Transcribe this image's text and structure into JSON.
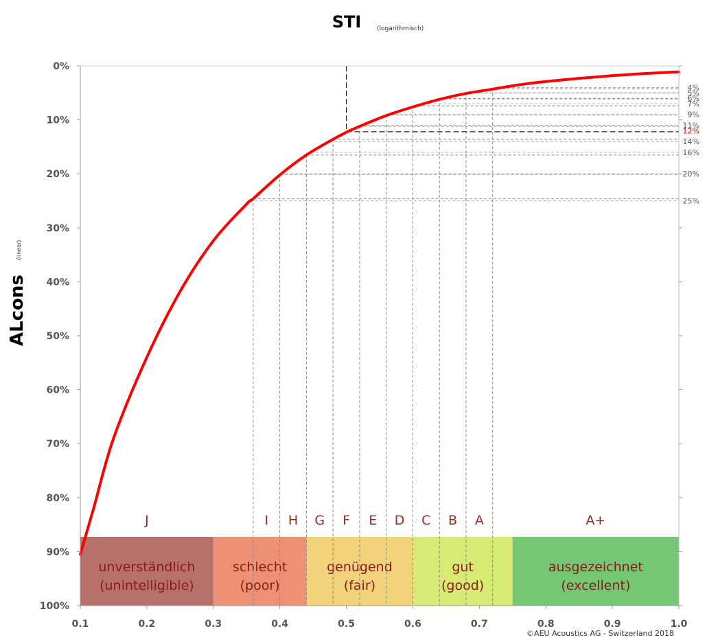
{
  "title": "STI",
  "subtitle": "(logarithmisch)",
  "ylabel": "ALcons",
  "ylabel_sub": "(linear)",
  "copyright": "©AEU Acoustics AG - Switzerland 2018",
  "colors": {
    "curve": "#ff0000",
    "highlight": "#e60000",
    "class_letter": "#9a2a1a",
    "band_text": "#8b1a12"
  },
  "chart_data": {
    "type": "line",
    "x_scale": "linear",
    "y_inverted": true,
    "xlim": [
      0.1,
      1.0
    ],
    "ylim": [
      0,
      100
    ],
    "x_ticks": [
      "0.1",
      "0.2",
      "0.3",
      "0.4",
      "0.5",
      "0.6",
      "0.7",
      "0.8",
      "0.9",
      "1.0"
    ],
    "y_ticks": [
      "0%",
      "10%",
      "20%",
      "30%",
      "40%",
      "50%",
      "60%",
      "70%",
      "80%",
      "90%",
      "100%"
    ],
    "series": [
      {
        "x": [
          0.1,
          0.12,
          0.15,
          0.2,
          0.25,
          0.3,
          0.35,
          0.36,
          0.4,
          0.44,
          0.48,
          0.5,
          0.52,
          0.56,
          0.6,
          0.64,
          0.68,
          0.72,
          0.76,
          0.8,
          0.85,
          0.9,
          0.95,
          1.0
        ],
        "y": [
          90.5,
          82,
          69,
          54,
          41.8,
          32.4,
          25.6,
          24.6,
          20.2,
          16.5,
          13.6,
          12.3,
          11.2,
          9.2,
          7.6,
          6.2,
          5.1,
          4.3,
          3.5,
          2.9,
          2.3,
          1.8,
          1.4,
          1.1
        ]
      }
    ],
    "right_axis_labels": [
      {
        "value": 4,
        "label": "4%"
      },
      {
        "value": 5,
        "label": "5%"
      },
      {
        "value": 6,
        "label": "6%"
      },
      {
        "value": 7,
        "label": "7%"
      },
      {
        "value": 9,
        "label": "9%"
      },
      {
        "value": 11,
        "label": "11%"
      },
      {
        "value": 12,
        "label": "12%",
        "highlight": true
      },
      {
        "value": 14,
        "label": "14%"
      },
      {
        "value": 16,
        "label": "16%"
      },
      {
        "value": 20,
        "label": "20%"
      },
      {
        "value": 25,
        "label": "25%"
      }
    ],
    "reference_lines": [
      {
        "x": 0.36,
        "y": 24.6
      },
      {
        "x": 0.4,
        "y": 20.1
      },
      {
        "x": 0.44,
        "y": 16.5
      },
      {
        "x": 0.48,
        "y": 13.6
      },
      {
        "x": 0.52,
        "y": 11.2
      },
      {
        "x": 0.56,
        "y": 9.1
      },
      {
        "x": 0.6,
        "y": 7.4
      },
      {
        "x": 0.64,
        "y": 6.1
      },
      {
        "x": 0.68,
        "y": 5.0
      },
      {
        "x": 0.72,
        "y": 4.2
      }
    ],
    "highlight_point": {
      "x": 0.5,
      "y": 12.2
    },
    "classes": [
      {
        "label": "J",
        "x": 0.2
      },
      {
        "label": "I",
        "x": 0.38
      },
      {
        "label": "H",
        "x": 0.42
      },
      {
        "label": "G",
        "x": 0.46
      },
      {
        "label": "F",
        "x": 0.5
      },
      {
        "label": "E",
        "x": 0.54
      },
      {
        "label": "D",
        "x": 0.58
      },
      {
        "label": "C",
        "x": 0.62
      },
      {
        "label": "B",
        "x": 0.66
      },
      {
        "label": "A",
        "x": 0.7
      },
      {
        "label": "A+",
        "x": 0.875
      }
    ],
    "bands": [
      {
        "x0": 0.1,
        "x1": 0.3,
        "color": "#b8716a",
        "line1": "unverständlich",
        "line2": "(unintelligible)"
      },
      {
        "x0": 0.3,
        "x1": 0.44,
        "color": "#ee9076",
        "line1": "schlecht",
        "line2": "(poor)"
      },
      {
        "x0": 0.44,
        "x1": 0.6,
        "color": "#f2d27a",
        "line1": "genügend",
        "line2": "(fair)"
      },
      {
        "x0": 0.6,
        "x1": 0.75,
        "color": "#d9ea74",
        "line1": "gut",
        "line2": "(good)"
      },
      {
        "x0": 0.75,
        "x1": 1.0,
        "color": "#74c774",
        "line1": "ausgezeichnet",
        "line2": "(excellent)"
      }
    ]
  }
}
